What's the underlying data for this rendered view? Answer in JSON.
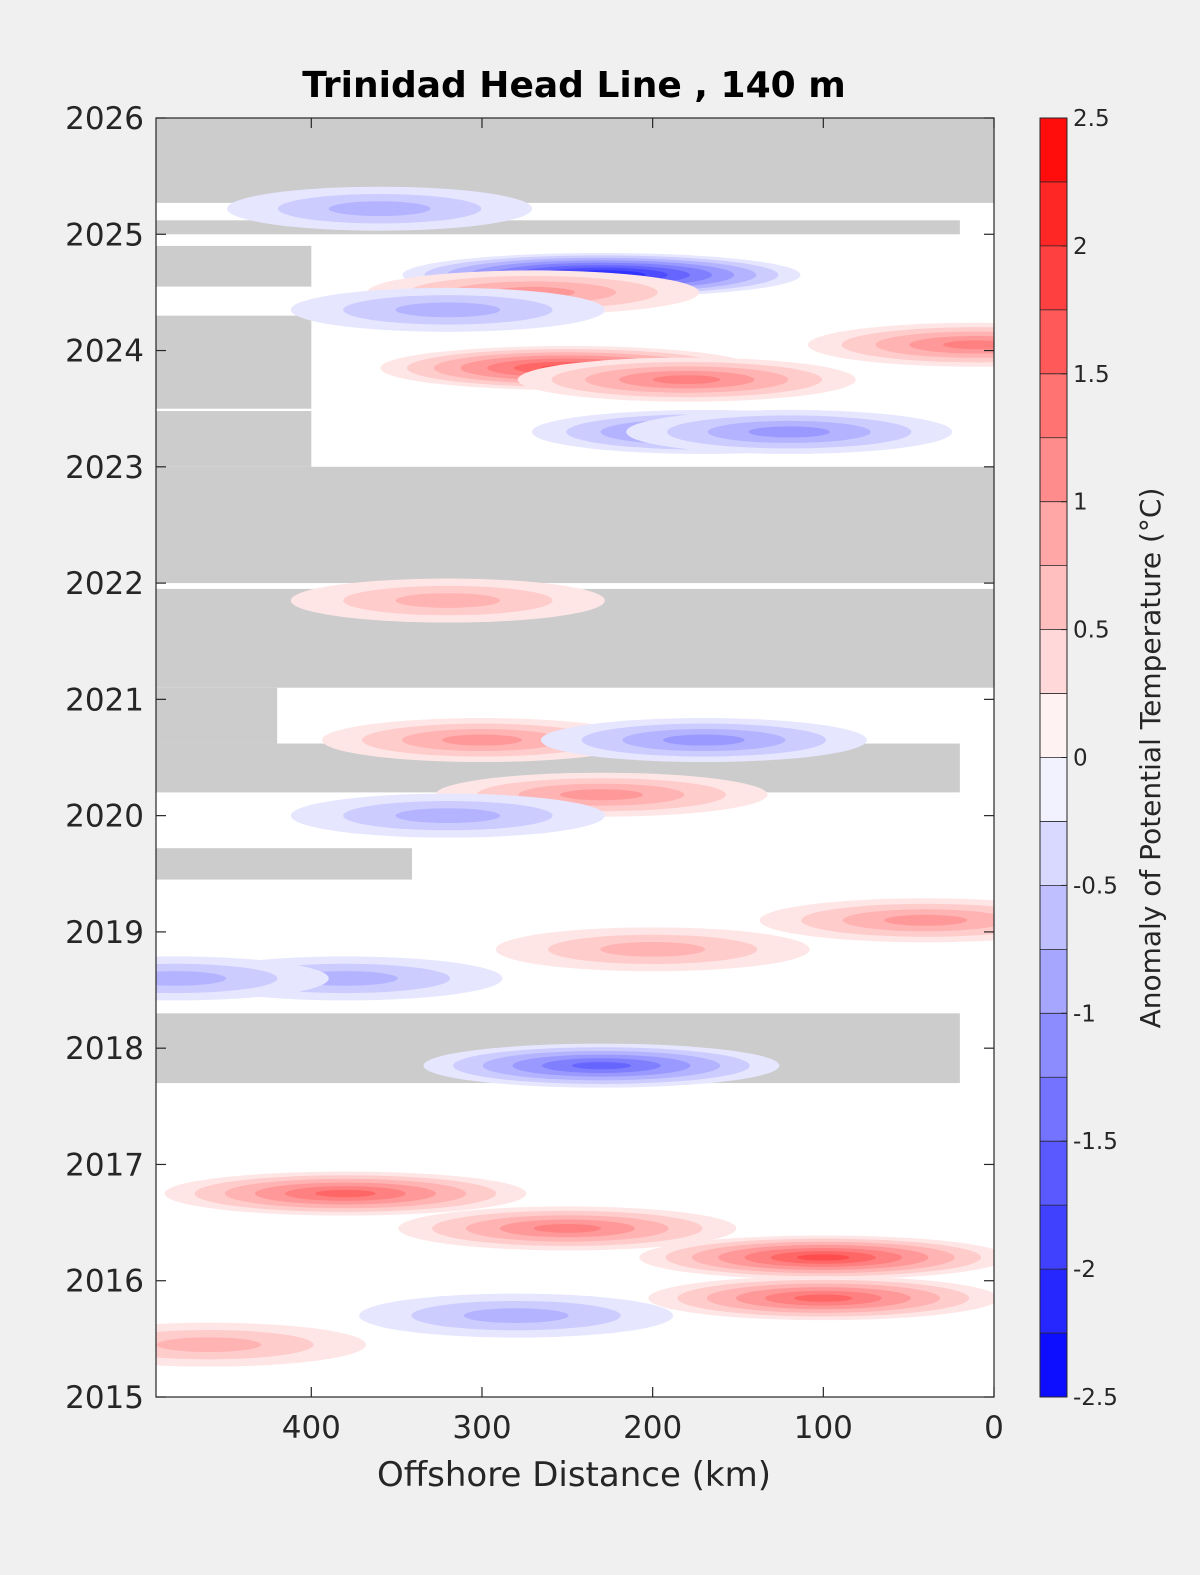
{
  "chart_data": {
    "type": "heatmap",
    "title": "Trinidad Head Line , 140 m",
    "xlabel": "Offshore Distance (km)",
    "ylabel": "",
    "x_reversed": true,
    "xlim": [
      491,
      0
    ],
    "ylim": [
      2015,
      2026
    ],
    "xticks": [
      400,
      300,
      200,
      100,
      0
    ],
    "yticks": [
      2015,
      2016,
      2017,
      2018,
      2019,
      2020,
      2021,
      2022,
      2023,
      2024,
      2025,
      2026
    ],
    "colorbar": {
      "label": "Anomaly of Potential Temperature (°C)",
      "range": [
        -2.5,
        2.5
      ],
      "step": 0.25,
      "ticks": [
        -2.5,
        -2,
        -1.5,
        -1,
        -0.5,
        0,
        0.5,
        1,
        1.5,
        2,
        2.5
      ],
      "low_color": "#0000ff",
      "mid_color": "#ffffff",
      "high_color": "#ff0000"
    },
    "missing_color": "#cccccc",
    "missing_periods": [
      {
        "t": [
          2025.27,
          2026
        ],
        "x": [
          491,
          0
        ]
      },
      {
        "t": [
          2025.0,
          2025.12
        ],
        "x": [
          491,
          20
        ]
      },
      {
        "t": [
          2024.55,
          2024.9
        ],
        "x": [
          491,
          400
        ]
      },
      {
        "t": [
          2023.5,
          2024.3
        ],
        "x": [
          491,
          400
        ]
      },
      {
        "t": [
          2023.0,
          2023.48
        ],
        "x": [
          491,
          400
        ]
      },
      {
        "t": [
          2022.0,
          2023.0
        ],
        "x": [
          491,
          0
        ]
      },
      {
        "t": [
          2021.1,
          2021.95
        ],
        "x": [
          491,
          0
        ]
      },
      {
        "t": [
          2020.2,
          2020.62
        ],
        "x": [
          491,
          20
        ]
      },
      {
        "t": [
          2020.62,
          2021.1
        ],
        "x": [
          491,
          420
        ]
      },
      {
        "t": [
          2019.45,
          2019.72
        ],
        "x": [
          491,
          341
        ]
      },
      {
        "t": [
          2017.7,
          2018.3
        ],
        "x": [
          491,
          20
        ]
      }
    ],
    "anomalies": [
      {
        "t": 2025.22,
        "x": 360,
        "value": -0.75
      },
      {
        "t": 2024.65,
        "x": 230,
        "value": -2.3
      },
      {
        "t": 2024.5,
        "x": 270,
        "value": 1.2
      },
      {
        "t": 2024.35,
        "x": 320,
        "value": -0.9
      },
      {
        "t": 2024.05,
        "x": 10,
        "value": 1.3
      },
      {
        "t": 2023.85,
        "x": 250,
        "value": 1.9
      },
      {
        "t": 2023.75,
        "x": 180,
        "value": 1.3
      },
      {
        "t": 2023.3,
        "x": 170,
        "value": -1.4
      },
      {
        "t": 2023.3,
        "x": 120,
        "value": -1.1
      },
      {
        "t": 2021.85,
        "x": 320,
        "value": 0.9
      },
      {
        "t": 2020.65,
        "x": 300,
        "value": 1.0
      },
      {
        "t": 2020.65,
        "x": 170,
        "value": -1.1
      },
      {
        "t": 2020.18,
        "x": 230,
        "value": 1.2
      },
      {
        "t": 2020.0,
        "x": 320,
        "value": -0.9
      },
      {
        "t": 2019.1,
        "x": 40,
        "value": 1.2
      },
      {
        "t": 2018.85,
        "x": 200,
        "value": 0.9
      },
      {
        "t": 2018.6,
        "x": 380,
        "value": -0.9
      },
      {
        "t": 2018.6,
        "x": 480,
        "value": -0.8
      },
      {
        "t": 2017.85,
        "x": 230,
        "value": -1.6
      },
      {
        "t": 2016.75,
        "x": 380,
        "value": 1.7
      },
      {
        "t": 2016.45,
        "x": 250,
        "value": 1.3
      },
      {
        "t": 2016.2,
        "x": 100,
        "value": 1.8
      },
      {
        "t": 2015.85,
        "x": 100,
        "value": 1.5
      },
      {
        "t": 2015.7,
        "x": 280,
        "value": -0.9
      },
      {
        "t": 2015.45,
        "x": 460,
        "value": 0.9
      }
    ]
  }
}
